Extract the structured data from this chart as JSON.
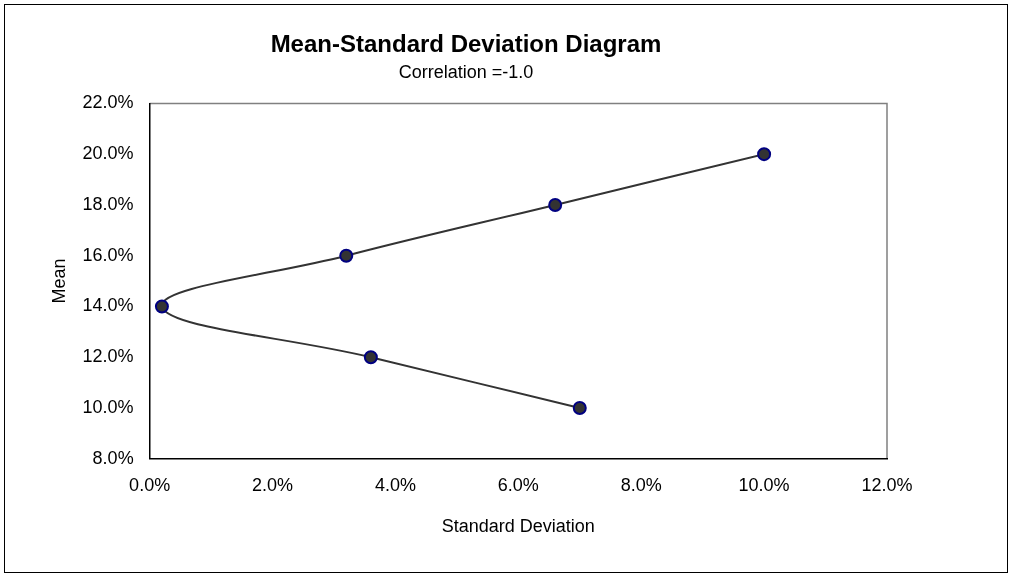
{
  "chart_data": {
    "type": "line",
    "title": "Mean-Standard Deviation Diagram",
    "subtitle": "Correlation =-1.0",
    "xlabel": "Standard Deviation",
    "ylabel": "Mean",
    "x": [
      0.07,
      0.036,
      0.002,
      0.032,
      0.066,
      0.1
    ],
    "series": [
      {
        "color": "#333333",
        "values": [
          0.1,
          0.12,
          0.14,
          0.16,
          0.18,
          0.2
        ]
      }
    ],
    "marker": "circle",
    "line_style": "solid",
    "grid": false,
    "legend": false,
    "xlim": [
      0,
      0.12
    ],
    "xticks": [
      {
        "value": 0,
        "label": "0.0%"
      },
      {
        "value": 0.02,
        "label": "2.0%"
      },
      {
        "value": 0.04,
        "label": "4.0%"
      },
      {
        "value": 0.06,
        "label": "6.0%"
      },
      {
        "value": 0.08,
        "label": "8.0%"
      },
      {
        "value": 0.1,
        "label": "10.0%"
      },
      {
        "value": 0.12,
        "label": "12.0%"
      }
    ],
    "ylim": [
      0.08,
      0.22
    ],
    "yticks": [
      {
        "value": 0.08,
        "label": "8.0%"
      },
      {
        "value": 0.1,
        "label": "10.0%"
      },
      {
        "value": 0.12,
        "label": "12.0%"
      },
      {
        "value": 0.14,
        "label": "14.0%"
      },
      {
        "value": 0.16,
        "label": "16.0%"
      },
      {
        "value": 0.18,
        "label": "18.0%"
      },
      {
        "value": 0.2,
        "label": "20.0%"
      },
      {
        "value": 0.22,
        "label": "22.0%"
      }
    ]
  }
}
